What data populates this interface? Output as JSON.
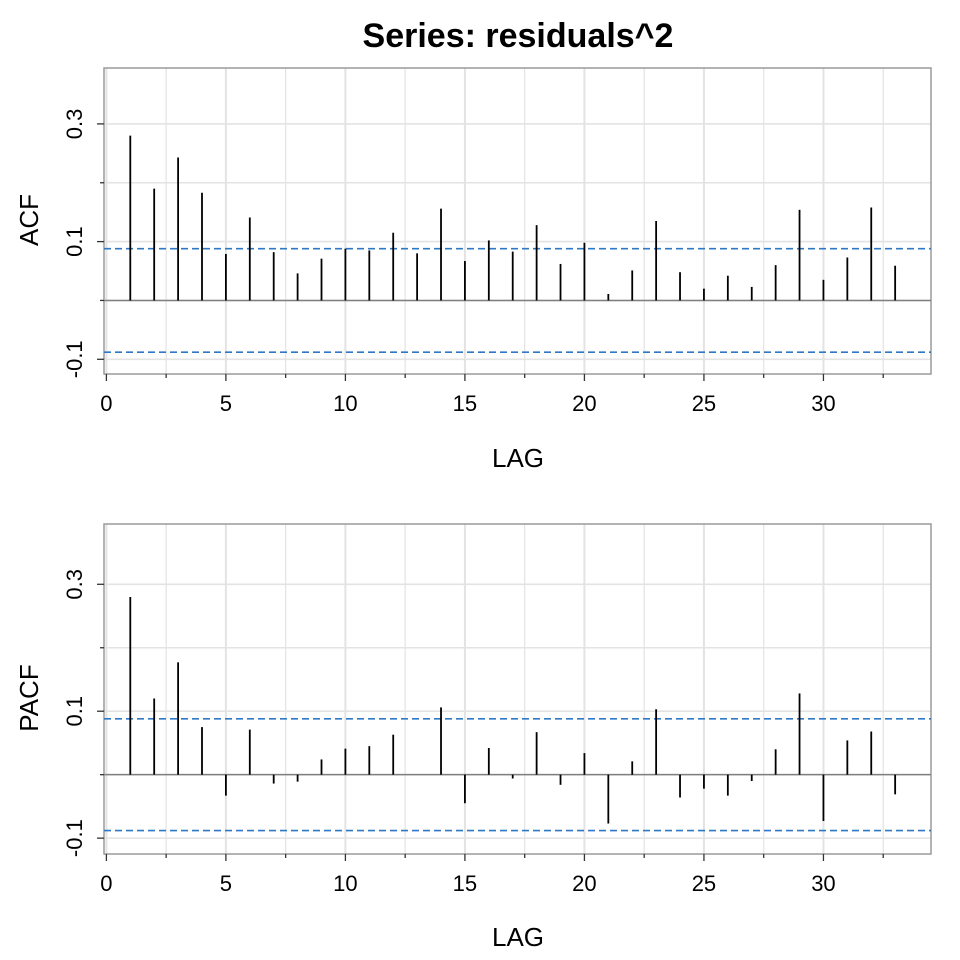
{
  "title": "Series:  residuals^2",
  "colors": {
    "grid": "#e3e3e3",
    "frame": "#9a9a9a",
    "conf": "#2e78c4",
    "bar": "#000000",
    "zero": "#7f7f7f"
  },
  "chart_data": [
    {
      "name": "acf",
      "type": "bar",
      "xlabel": "LAG",
      "ylabel": "ACF",
      "xlim": [
        -0.1,
        34.5
      ],
      "ylim": [
        -0.125,
        0.395
      ],
      "xticks": [
        0,
        5,
        10,
        15,
        20,
        25,
        30
      ],
      "yticks": [
        -0.1,
        0.1,
        0.3
      ],
      "conf_band": 0.088,
      "lags": [
        1,
        2,
        3,
        4,
        5,
        6,
        7,
        8,
        9,
        10,
        11,
        12,
        13,
        14,
        15,
        16,
        17,
        18,
        19,
        20,
        21,
        22,
        23,
        24,
        25,
        26,
        27,
        28,
        29,
        30,
        31,
        32,
        33
      ],
      "values": [
        0.28,
        0.19,
        0.243,
        0.183,
        0.079,
        0.141,
        0.082,
        0.046,
        0.071,
        0.088,
        0.085,
        0.115,
        0.08,
        0.156,
        0.067,
        0.102,
        0.083,
        0.128,
        0.062,
        0.098,
        0.011,
        0.051,
        0.135,
        0.048,
        0.02,
        0.042,
        0.023,
        0.06,
        0.154,
        0.035,
        0.073,
        0.158,
        0.059
      ]
    },
    {
      "name": "pacf",
      "type": "bar",
      "xlabel": "LAG",
      "ylabel": "PACF",
      "xlim": [
        -0.1,
        34.5
      ],
      "ylim": [
        -0.125,
        0.395
      ],
      "xticks": [
        0,
        5,
        10,
        15,
        20,
        25,
        30
      ],
      "yticks": [
        -0.1,
        0.1,
        0.3
      ],
      "conf_band": 0.088,
      "lags": [
        1,
        2,
        3,
        4,
        5,
        6,
        7,
        8,
        9,
        10,
        11,
        12,
        13,
        14,
        15,
        16,
        17,
        18,
        19,
        20,
        21,
        22,
        23,
        24,
        25,
        26,
        27,
        28,
        29,
        30,
        31,
        32,
        33
      ],
      "values": [
        0.28,
        0.12,
        0.177,
        0.075,
        -0.033,
        0.071,
        -0.014,
        -0.011,
        0.024,
        0.041,
        0.045,
        0.063,
        0.0,
        0.106,
        -0.045,
        0.042,
        -0.006,
        0.067,
        -0.016,
        0.034,
        -0.077,
        0.021,
        0.103,
        -0.036,
        -0.022,
        -0.033,
        -0.01,
        0.04,
        0.128,
        -0.073,
        0.054,
        0.068,
        -0.031
      ]
    }
  ]
}
